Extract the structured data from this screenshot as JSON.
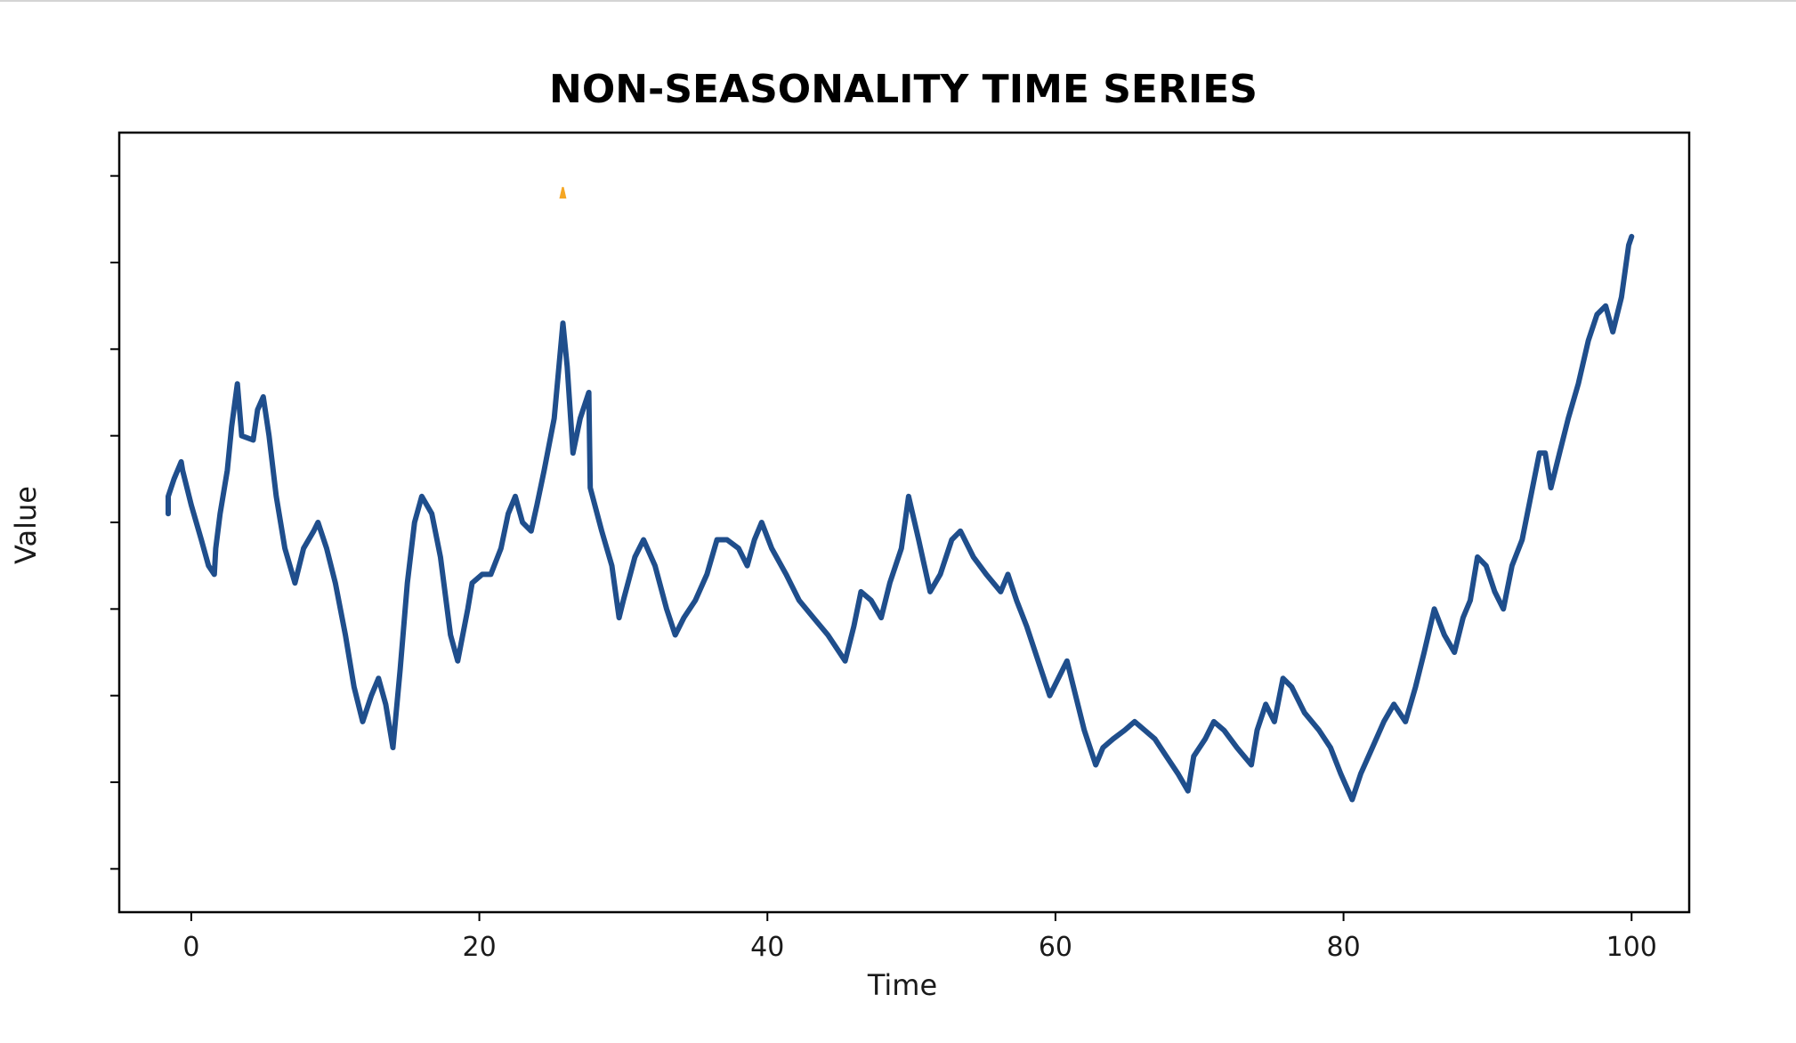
{
  "chart_data": {
    "type": "line",
    "title": "NON-SEASONALITY TIME SERIES",
    "xlabel": "Time",
    "ylabel": "Value",
    "xlim": [
      -5,
      104
    ],
    "ylim": [
      -4.5,
      4.5
    ],
    "x_ticks": [
      0,
      20,
      40,
      60,
      80,
      100
    ],
    "x_tick_labels": [
      "0",
      "20",
      "40",
      "60",
      "80",
      "100"
    ],
    "y_ticks": [
      -4,
      -3,
      -2,
      -1,
      0,
      1,
      2,
      3,
      4
    ],
    "y_tick_labels": [
      "",
      "",
      "",
      "",
      "",
      "",
      "",
      "",
      ""
    ],
    "grid": false,
    "colors": {
      "line": "#1f4e8c",
      "marker": "#f5a623",
      "axes": "#000000"
    },
    "series": [
      {
        "values": [
          [
            -1.6,
            0.1
          ],
          [
            -1.6,
            0.3
          ],
          [
            -1.2,
            0.5
          ],
          [
            -0.7,
            0.7
          ],
          [
            -0.6,
            0.6
          ],
          [
            0.0,
            0.2
          ],
          [
            0.7,
            -0.2
          ],
          [
            1.2,
            -0.5
          ],
          [
            1.6,
            -0.6
          ],
          [
            1.7,
            -0.3
          ],
          [
            2.0,
            0.1
          ],
          [
            2.5,
            0.6
          ],
          [
            2.8,
            1.1
          ],
          [
            3.2,
            1.6
          ],
          [
            3.5,
            1.0
          ],
          [
            4.3,
            0.95
          ],
          [
            4.6,
            1.3
          ],
          [
            5.0,
            1.45
          ],
          [
            5.4,
            1.0
          ],
          [
            5.9,
            0.3
          ],
          [
            6.5,
            -0.3
          ],
          [
            7.2,
            -0.7
          ],
          [
            7.8,
            -0.3
          ],
          [
            8.5,
            -0.1
          ],
          [
            8.8,
            0.0
          ],
          [
            9.4,
            -0.3
          ],
          [
            10.0,
            -0.7
          ],
          [
            10.7,
            -1.3
          ],
          [
            11.3,
            -1.9
          ],
          [
            11.9,
            -2.3
          ],
          [
            12.5,
            -2.0
          ],
          [
            13.0,
            -1.8
          ],
          [
            13.5,
            -2.1
          ],
          [
            14.0,
            -2.6
          ],
          [
            14.5,
            -1.7
          ],
          [
            15.0,
            -0.7
          ],
          [
            15.5,
            0.0
          ],
          [
            16.0,
            0.3
          ],
          [
            16.7,
            0.1
          ],
          [
            17.3,
            -0.4
          ],
          [
            18.0,
            -1.3
          ],
          [
            18.5,
            -1.6
          ],
          [
            19.2,
            -1.0
          ],
          [
            19.5,
            -0.7
          ],
          [
            20.2,
            -0.6
          ],
          [
            20.8,
            -0.6
          ],
          [
            21.5,
            -0.3
          ],
          [
            22.0,
            0.1
          ],
          [
            22.5,
            0.3
          ],
          [
            23.0,
            0.0
          ],
          [
            23.6,
            -0.1
          ],
          [
            24.0,
            0.2
          ],
          [
            24.5,
            0.6
          ],
          [
            25.2,
            1.2
          ],
          [
            25.8,
            2.3
          ],
          [
            26.1,
            1.8
          ],
          [
            26.5,
            0.8
          ],
          [
            27.0,
            1.2
          ],
          [
            27.6,
            1.5
          ],
          [
            27.7,
            0.4
          ],
          [
            28.5,
            -0.1
          ],
          [
            29.2,
            -0.5
          ],
          [
            29.7,
            -1.1
          ],
          [
            30.0,
            -0.9
          ],
          [
            30.8,
            -0.4
          ],
          [
            31.4,
            -0.2
          ],
          [
            32.2,
            -0.5
          ],
          [
            33.0,
            -1.0
          ],
          [
            33.6,
            -1.3
          ],
          [
            34.2,
            -1.1
          ],
          [
            35.0,
            -0.9
          ],
          [
            35.8,
            -0.6
          ],
          [
            36.5,
            -0.2
          ],
          [
            37.2,
            -0.2
          ],
          [
            38.0,
            -0.3
          ],
          [
            38.6,
            -0.5
          ],
          [
            39.1,
            -0.2
          ],
          [
            39.6,
            0.0
          ],
          [
            40.3,
            -0.3
          ],
          [
            41.3,
            -0.6
          ],
          [
            42.2,
            -0.9
          ],
          [
            43.2,
            -1.1
          ],
          [
            44.2,
            -1.3
          ],
          [
            45.4,
            -1.6
          ],
          [
            46.0,
            -1.2
          ],
          [
            46.5,
            -0.8
          ],
          [
            47.2,
            -0.9
          ],
          [
            47.9,
            -1.1
          ],
          [
            48.5,
            -0.7
          ],
          [
            49.3,
            -0.3
          ],
          [
            49.8,
            0.3
          ],
          [
            50.5,
            -0.2
          ],
          [
            51.3,
            -0.8
          ],
          [
            52.0,
            -0.6
          ],
          [
            52.8,
            -0.2
          ],
          [
            53.4,
            -0.1
          ],
          [
            54.3,
            -0.4
          ],
          [
            55.2,
            -0.6
          ],
          [
            56.2,
            -0.8
          ],
          [
            56.7,
            -0.6
          ],
          [
            57.3,
            -0.9
          ],
          [
            58.0,
            -1.2
          ],
          [
            58.8,
            -1.6
          ],
          [
            59.6,
            -2.0
          ],
          [
            60.2,
            -1.8
          ],
          [
            60.8,
            -1.6
          ],
          [
            61.4,
            -2.0
          ],
          [
            62.0,
            -2.4
          ],
          [
            62.8,
            -2.8
          ],
          [
            63.3,
            -2.6
          ],
          [
            64.0,
            -2.5
          ],
          [
            64.8,
            -2.4
          ],
          [
            65.5,
            -2.3
          ],
          [
            66.2,
            -2.4
          ],
          [
            66.9,
            -2.5
          ],
          [
            67.7,
            -2.7
          ],
          [
            68.5,
            -2.9
          ],
          [
            69.2,
            -3.1
          ],
          [
            69.6,
            -2.7
          ],
          [
            70.4,
            -2.5
          ],
          [
            71.0,
            -2.3
          ],
          [
            71.7,
            -2.4
          ],
          [
            72.6,
            -2.6
          ],
          [
            73.6,
            -2.8
          ],
          [
            74.0,
            -2.4
          ],
          [
            74.6,
            -2.1
          ],
          [
            75.2,
            -2.3
          ],
          [
            75.8,
            -1.8
          ],
          [
            76.4,
            -1.9
          ],
          [
            77.3,
            -2.2
          ],
          [
            78.3,
            -2.4
          ],
          [
            79.1,
            -2.6
          ],
          [
            79.8,
            -2.9
          ],
          [
            80.6,
            -3.2
          ],
          [
            81.2,
            -2.9
          ],
          [
            82.0,
            -2.6
          ],
          [
            82.8,
            -2.3
          ],
          [
            83.5,
            -2.1
          ],
          [
            84.3,
            -2.3
          ],
          [
            85.0,
            -1.9
          ],
          [
            85.6,
            -1.5
          ],
          [
            86.3,
            -1.0
          ],
          [
            87.0,
            -1.3
          ],
          [
            87.7,
            -1.5
          ],
          [
            88.3,
            -1.1
          ],
          [
            88.8,
            -0.9
          ],
          [
            89.3,
            -0.4
          ],
          [
            89.9,
            -0.5
          ],
          [
            90.5,
            -0.8
          ],
          [
            91.1,
            -1.0
          ],
          [
            91.7,
            -0.5
          ],
          [
            92.4,
            -0.2
          ],
          [
            93.0,
            0.3
          ],
          [
            93.6,
            0.8
          ],
          [
            94.0,
            0.8
          ],
          [
            94.4,
            0.4
          ],
          [
            95.0,
            0.8
          ],
          [
            95.6,
            1.2
          ],
          [
            96.3,
            1.6
          ],
          [
            97.0,
            2.1
          ],
          [
            97.6,
            2.4
          ],
          [
            98.2,
            2.5
          ],
          [
            98.7,
            2.2
          ],
          [
            99.3,
            2.6
          ],
          [
            99.8,
            3.2
          ],
          [
            100.0,
            3.3
          ]
        ]
      }
    ],
    "markers": [
      {
        "x": 25.8,
        "y": 3.8,
        "shape": "triangle-up"
      }
    ]
  }
}
